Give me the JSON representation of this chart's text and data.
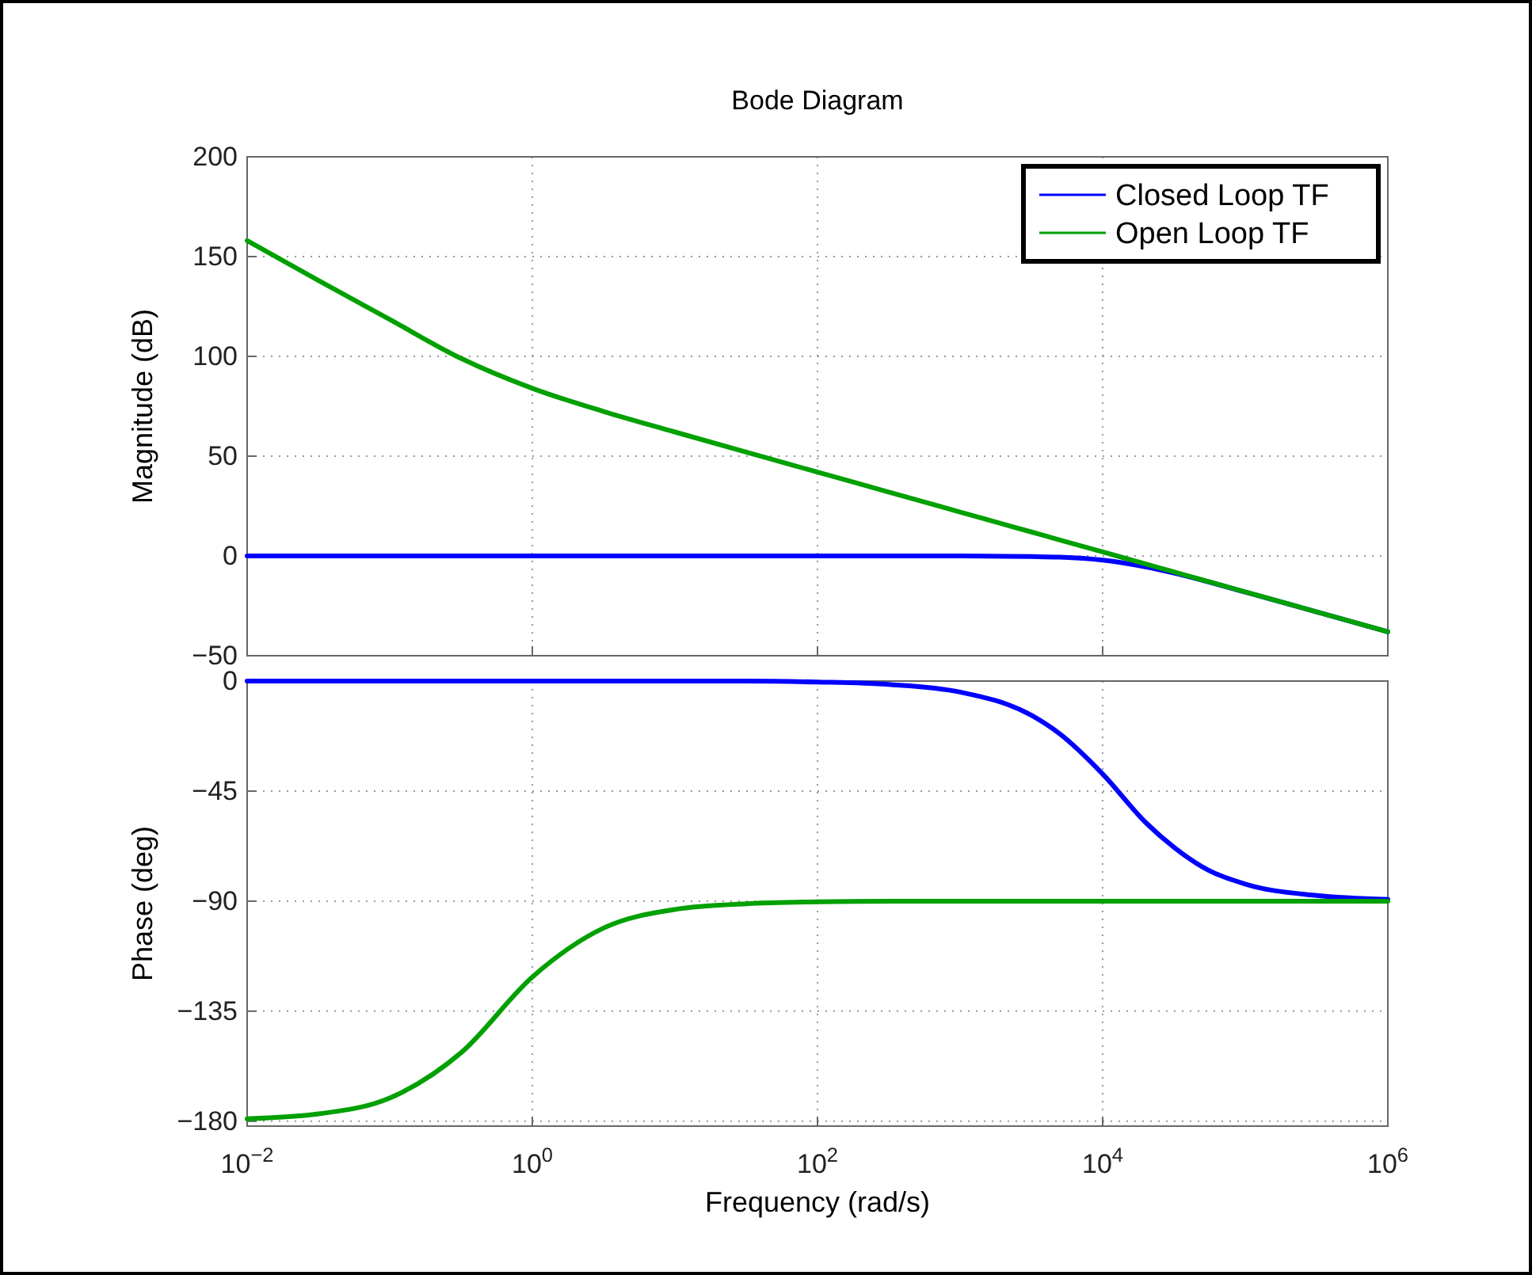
{
  "chart_data": [
    {
      "type": "line",
      "title": "Bode Diagram",
      "ylabel": "Magnitude (dB)",
      "log": "x",
      "grid": true,
      "legend": "top right",
      "tick_labels": "y",
      "line_style": "solid",
      "x": [
        0.01,
        0.0316,
        0.1,
        0.316,
        1,
        3.16,
        10,
        31.6,
        100,
        316,
        1000,
        3162,
        5000,
        10000,
        20000,
        31620,
        50000,
        100000,
        316200,
        1000000
      ],
      "xlim": [
        0.01,
        1000000
      ],
      "xticks": [
        {
          "value": 0.01,
          "label": null
        },
        {
          "value": 1,
          "label": null
        },
        {
          "value": 100,
          "label": null
        },
        {
          "value": 10000,
          "label": null
        },
        {
          "value": 1000000,
          "label": null
        }
      ],
      "ylim": [
        -50,
        200
      ],
      "yticks": [
        {
          "value": -50,
          "label": "−50"
        },
        0,
        50,
        100,
        150,
        200
      ],
      "series": [
        {
          "name": "Closed Loop TF",
          "color": "#0000ff",
          "values": [
            0,
            0,
            0,
            0,
            0,
            0,
            0,
            0,
            0,
            0,
            0,
            -0.3,
            -0.6,
            -2.1,
            -5.5,
            -8.6,
            -12.2,
            -18.1,
            -28,
            -38
          ]
        },
        {
          "name": "Open Loop TF",
          "color": "#00a000",
          "values": [
            158,
            138,
            118.5,
            99,
            84,
            72.4,
            62.1,
            52,
            42,
            32,
            22,
            12,
            8,
            2,
            -4,
            -8,
            -12,
            -18,
            -28,
            -38
          ]
        }
      ]
    },
    {
      "type": "line",
      "xlabel": "Frequency  (rad/s)",
      "ylabel": "Phase (deg)",
      "log": "x",
      "grid": true,
      "line_style": "solid",
      "x": [
        0.01,
        0.0316,
        0.1,
        0.316,
        1,
        3.16,
        10,
        31.6,
        100,
        316,
        1000,
        3162,
        5000,
        10000,
        20000,
        31620,
        50000,
        100000,
        316200,
        1000000
      ],
      "xlim": [
        0.01,
        1000000
      ],
      "xticks": [
        {
          "value": 0.01,
          "label": "10$^{−2}$"
        },
        {
          "value": 1,
          "label": "10$^{0}$"
        },
        {
          "value": 100,
          "label": "10$^{2}$"
        },
        {
          "value": 10000,
          "label": "10$^{4}$"
        },
        {
          "value": 1000000,
          "label": "10$^{6}$"
        }
      ],
      "ylim": [
        -182,
        0
      ],
      "yticks": [
        {
          "value": -180,
          "label": "−180"
        },
        {
          "value": -135,
          "label": "−135"
        },
        {
          "value": -90,
          "label": "−90"
        },
        {
          "value": -45,
          "label": "−45"
        },
        0
      ],
      "series": [
        {
          "color": "#0000ff",
          "values": [
            0,
            0,
            0,
            0,
            0,
            0,
            0,
            0,
            -0.4,
            -1.4,
            -4.5,
            -14,
            -21.6,
            -38,
            -57.8,
            -68,
            -76,
            -83,
            -87.7,
            -89.3
          ]
        },
        {
          "color": "#00a000",
          "values": [
            -179,
            -177,
            -170.5,
            -152,
            -121,
            -101,
            -93.4,
            -91.1,
            -90.3,
            -90,
            -90,
            -90,
            -90,
            -90,
            -90,
            -90,
            -90,
            -90,
            -90,
            -90
          ]
        }
      ]
    }
  ]
}
